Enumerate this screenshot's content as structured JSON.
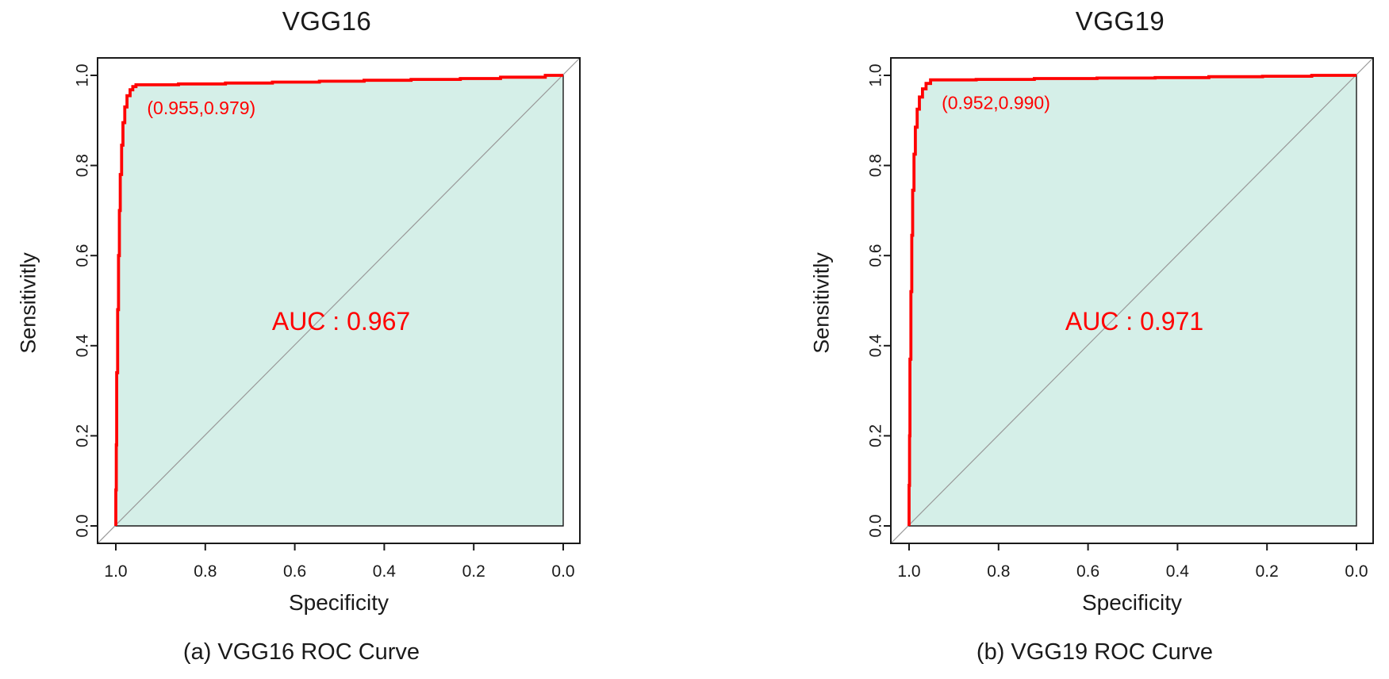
{
  "figure": {
    "description": "ROC curve comparison of two CNN models"
  },
  "colors": {
    "curve_red": "#ff0000",
    "fill_mint": "#d5efe8",
    "diagonal_gray": "#999999",
    "axis_black": "#1a1a1a",
    "text_black": "#1a1a1a"
  },
  "chart_data": [
    {
      "type": "line",
      "title": "VGG16",
      "xlabel": "Specificity",
      "ylabel": "Sensitivitly",
      "caption": "(a) VGG16 ROC Curve",
      "x_ticks": [
        "1.0",
        "0.8",
        "0.6",
        "0.4",
        "0.2",
        "0.0"
      ],
      "y_ticks": [
        "0.0",
        "0.2",
        "0.4",
        "0.6",
        "0.8",
        "1.0"
      ],
      "xlim": [
        1.0,
        0.0
      ],
      "ylim": [
        0.0,
        1.0
      ],
      "x_axis_reversed": true,
      "grid": false,
      "diagonal_reference_line": true,
      "area_filled": true,
      "auc": 0.967,
      "auc_label": "AUC : 0.967",
      "optimal_point": {
        "specificity": 0.955,
        "sensitivity": 0.979,
        "label": "(0.955,0.979)"
      },
      "series": [
        {
          "name": "ROC curve",
          "color": "#ff0000",
          "points_specificity_sensitivity": [
            [
              1.0,
              0
            ],
            [
              1.0,
              0.08
            ],
            [
              0.999,
              0.08
            ],
            [
              0.999,
              0.18
            ],
            [
              0.998,
              0.18
            ],
            [
              0.998,
              0.34
            ],
            [
              0.996,
              0.34
            ],
            [
              0.996,
              0.48
            ],
            [
              0.994,
              0.48
            ],
            [
              0.994,
              0.6
            ],
            [
              0.992,
              0.6
            ],
            [
              0.992,
              0.7
            ],
            [
              0.99,
              0.7
            ],
            [
              0.99,
              0.78
            ],
            [
              0.987,
              0.78
            ],
            [
              0.987,
              0.845
            ],
            [
              0.984,
              0.845
            ],
            [
              0.984,
              0.895
            ],
            [
              0.98,
              0.895
            ],
            [
              0.98,
              0.93
            ],
            [
              0.975,
              0.93
            ],
            [
              0.975,
              0.955
            ],
            [
              0.968,
              0.955
            ],
            [
              0.968,
              0.968
            ],
            [
              0.962,
              0.968
            ],
            [
              0.962,
              0.975
            ],
            [
              0.955,
              0.975
            ],
            [
              0.955,
              0.979
            ],
            [
              0.86,
              0.979
            ],
            [
              0.86,
              0.981
            ],
            [
              0.755,
              0.981
            ],
            [
              0.755,
              0.983
            ],
            [
              0.65,
              0.983
            ],
            [
              0.65,
              0.985
            ],
            [
              0.545,
              0.985
            ],
            [
              0.545,
              0.987
            ],
            [
              0.445,
              0.987
            ],
            [
              0.445,
              0.989
            ],
            [
              0.34,
              0.989
            ],
            [
              0.34,
              0.991
            ],
            [
              0.23,
              0.991
            ],
            [
              0.23,
              0.993
            ],
            [
              0.14,
              0.993
            ],
            [
              0.14,
              0.996
            ],
            [
              0.04,
              0.996
            ],
            [
              0.04,
              1.0
            ],
            [
              0.0,
              1.0
            ]
          ]
        }
      ]
    },
    {
      "type": "line",
      "title": "VGG19",
      "xlabel": "Specificity",
      "ylabel": "Sensitivitly",
      "caption": "(b) VGG19 ROC Curve",
      "x_ticks": [
        "1.0",
        "0.8",
        "0.6",
        "0.4",
        "0.2",
        "0.0"
      ],
      "y_ticks": [
        "0.0",
        "0.2",
        "0.4",
        "0.6",
        "0.8",
        "1.0"
      ],
      "xlim": [
        1.0,
        0.0
      ],
      "ylim": [
        0.0,
        1.0
      ],
      "x_axis_reversed": true,
      "grid": false,
      "diagonal_reference_line": true,
      "area_filled": true,
      "auc": 0.971,
      "auc_label": "AUC : 0.971",
      "optimal_point": {
        "specificity": 0.952,
        "sensitivity": 0.99,
        "label": "(0.952,0.990)"
      },
      "series": [
        {
          "name": "ROC curve",
          "color": "#ff0000",
          "points_specificity_sensitivity": [
            [
              1.0,
              0
            ],
            [
              1.0,
              0.09
            ],
            [
              0.999,
              0.09
            ],
            [
              0.999,
              0.2
            ],
            [
              0.998,
              0.2
            ],
            [
              0.998,
              0.37
            ],
            [
              0.996,
              0.37
            ],
            [
              0.996,
              0.52
            ],
            [
              0.994,
              0.52
            ],
            [
              0.994,
              0.645
            ],
            [
              0.992,
              0.645
            ],
            [
              0.992,
              0.745
            ],
            [
              0.989,
              0.745
            ],
            [
              0.989,
              0.825
            ],
            [
              0.986,
              0.825
            ],
            [
              0.986,
              0.885
            ],
            [
              0.982,
              0.885
            ],
            [
              0.982,
              0.925
            ],
            [
              0.977,
              0.925
            ],
            [
              0.977,
              0.952
            ],
            [
              0.97,
              0.952
            ],
            [
              0.97,
              0.97
            ],
            [
              0.962,
              0.97
            ],
            [
              0.962,
              0.982
            ],
            [
              0.952,
              0.982
            ],
            [
              0.952,
              0.99
            ],
            [
              0.85,
              0.99
            ],
            [
              0.85,
              0.991
            ],
            [
              0.72,
              0.991
            ],
            [
              0.72,
              0.993
            ],
            [
              0.58,
              0.993
            ],
            [
              0.58,
              0.994
            ],
            [
              0.45,
              0.994
            ],
            [
              0.45,
              0.995
            ],
            [
              0.33,
              0.995
            ],
            [
              0.33,
              0.997
            ],
            [
              0.21,
              0.997
            ],
            [
              0.21,
              0.998
            ],
            [
              0.1,
              0.998
            ],
            [
              0.1,
              1.0
            ],
            [
              0.0,
              1.0
            ]
          ]
        }
      ]
    }
  ]
}
